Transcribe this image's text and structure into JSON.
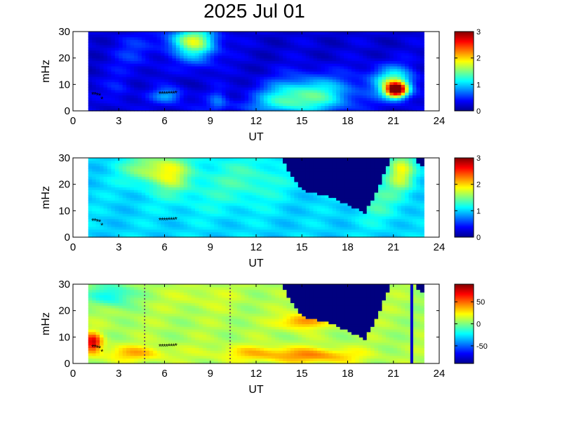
{
  "title": "2025 Jul 01",
  "colors": {
    "background_fill": "#00007f",
    "spectrum_low": "#00008f",
    "spectrum_high": "#7f0000",
    "marker": "#000000"
  },
  "chart_data": [
    {
      "type": "heatmap",
      "title": "",
      "xlabel": "UT",
      "ylabel": "mHz",
      "xlim": [
        0,
        24
      ],
      "ylim": [
        0,
        30
      ],
      "xticks": [
        "0",
        "3",
        "6",
        "9",
        "12",
        "15",
        "18",
        "21",
        "24"
      ],
      "yticks": [
        "0",
        "10",
        "20",
        "30"
      ],
      "data_extent": [
        1,
        23
      ],
      "colorbar": {
        "range": [
          0,
          3
        ],
        "ticks": [
          "0",
          "1",
          "2",
          "3"
        ]
      },
      "colormap": "jet",
      "hotspots": [
        {
          "x": 8.1,
          "y": 25,
          "value": 1.2,
          "sx": 0.9,
          "sy": 5
        },
        {
          "x": 7.5,
          "y": 27,
          "value": 0.9,
          "sx": 1.2,
          "sy": 3
        },
        {
          "x": 15.8,
          "y": 6,
          "value": 1.3,
          "sx": 1.8,
          "sy": 5
        },
        {
          "x": 13.5,
          "y": 4,
          "value": 0.8,
          "sx": 1.2,
          "sy": 4
        },
        {
          "x": 21.2,
          "y": 8,
          "value": 2.7,
          "sx": 0.5,
          "sy": 2
        },
        {
          "x": 21.0,
          "y": 11,
          "value": 1.4,
          "sx": 0.9,
          "sy": 4
        },
        {
          "x": 6.2,
          "y": 6,
          "value": 0.9,
          "sx": 0.7,
          "sy": 2
        },
        {
          "x": 4.0,
          "y": 22,
          "value": 0.5,
          "sx": 1.0,
          "sy": 5
        },
        {
          "x": 19.5,
          "y": 12,
          "value": 0.35,
          "sx": 1.0,
          "sy": 4
        },
        {
          "x": 11.0,
          "y": 2,
          "value": 0.4,
          "sx": 3.0,
          "sy": 2
        },
        {
          "x": 3.0,
          "y": 8,
          "value": 0.45,
          "sx": 0.6,
          "sy": 4
        },
        {
          "x": 9.5,
          "y": 4,
          "value": 0.6,
          "sx": 0.4,
          "sy": 3
        }
      ],
      "baseline": 0.25,
      "masked_region": []
    },
    {
      "type": "heatmap",
      "title": "",
      "xlabel": "UT",
      "ylabel": "mHz",
      "xlim": [
        0,
        24
      ],
      "ylim": [
        0,
        30
      ],
      "xticks": [
        "0",
        "3",
        "6",
        "9",
        "12",
        "15",
        "18",
        "21",
        "24"
      ],
      "yticks": [
        "0",
        "10",
        "20",
        "30"
      ],
      "data_extent": [
        1,
        23
      ],
      "colorbar": {
        "range": [
          0,
          3
        ],
        "ticks": [
          "0",
          "1",
          "2",
          "3"
        ]
      },
      "colormap": "jet",
      "hotspots": [
        {
          "x": 5.0,
          "y": 26,
          "value": 1.6,
          "sx": 1.2,
          "sy": 4
        },
        {
          "x": 6.5,
          "y": 24,
          "value": 1.5,
          "sx": 0.8,
          "sy": 5
        },
        {
          "x": 21.5,
          "y": 25,
          "value": 1.8,
          "sx": 0.6,
          "sy": 5
        },
        {
          "x": 9.0,
          "y": 20,
          "value": 1.2,
          "sx": 2.5,
          "sy": 8
        },
        {
          "x": 12.0,
          "y": 22,
          "value": 1.2,
          "sx": 1.5,
          "sy": 6
        },
        {
          "x": 20.0,
          "y": 14,
          "value": 1.3,
          "sx": 1.0,
          "sy": 6
        }
      ],
      "baseline": 1.0,
      "masked_region": [
        [
          13.6,
          30
        ],
        [
          15.0,
          18
        ],
        [
          17.0,
          15
        ],
        [
          18.2,
          12
        ],
        [
          19.1,
          9
        ],
        [
          20.0,
          18
        ],
        [
          20.8,
          30
        ]
      ],
      "masked_right": [
        [
          22.6,
          30
        ],
        [
          22.6,
          28
        ],
        [
          23,
          26
        ],
        [
          23,
          30
        ]
      ]
    },
    {
      "type": "heatmap",
      "title": "",
      "xlabel": "UT",
      "ylabel": "mHz",
      "xlim": [
        0,
        24
      ],
      "ylim": [
        0,
        30
      ],
      "xticks": [
        "0",
        "3",
        "6",
        "9",
        "12",
        "15",
        "18",
        "21",
        "24"
      ],
      "yticks": [
        "0",
        "10",
        "20",
        "30"
      ],
      "data_extent": [
        1,
        23
      ],
      "colorbar": {
        "range": [
          -90,
          90
        ],
        "ticks": [
          "50",
          "0",
          "-50"
        ],
        "tick_values": [
          50,
          0,
          -50
        ]
      },
      "colormap": "jet",
      "hotspots": [
        {
          "x": 1.3,
          "y": 8,
          "value": 75,
          "sx": 0.4,
          "sy": 2.5
        },
        {
          "x": 15.0,
          "y": 16,
          "value": 45,
          "sx": 1.0,
          "sy": 2
        },
        {
          "x": 16.0,
          "y": 3,
          "value": 40,
          "sx": 2.0,
          "sy": 2
        },
        {
          "x": 12.0,
          "y": 4,
          "value": 30,
          "sx": 2.0,
          "sy": 2
        },
        {
          "x": 4.0,
          "y": 4,
          "value": 35,
          "sx": 1.5,
          "sy": 2
        },
        {
          "x": 2.5,
          "y": 26,
          "value": -25,
          "sx": 1.0,
          "sy": 3
        },
        {
          "x": 8.5,
          "y": 25,
          "value": 15,
          "sx": 1.5,
          "sy": 3
        }
      ],
      "baseline": 8,
      "masked_region": [
        [
          13.6,
          30
        ],
        [
          15.0,
          18
        ],
        [
          17.0,
          15
        ],
        [
          18.2,
          12
        ],
        [
          19.1,
          9
        ],
        [
          20.0,
          18
        ],
        [
          20.8,
          30
        ]
      ],
      "masked_right": [
        [
          22.6,
          30
        ],
        [
          22.6,
          28
        ],
        [
          23,
          26
        ],
        [
          23,
          30
        ]
      ],
      "vertical_line": 22.2,
      "dotted_lines": [
        4.7,
        10.3
      ]
    }
  ],
  "markers": [
    {
      "x": 1.3,
      "y": 6.2
    },
    {
      "x": 1.45,
      "y": 6.2
    },
    {
      "x": 1.6,
      "y": 6.0
    },
    {
      "x": 1.75,
      "y": 5.8
    },
    {
      "x": 1.9,
      "y": 4.5
    },
    {
      "x": 5.7,
      "y": 6.5
    },
    {
      "x": 5.85,
      "y": 6.5
    },
    {
      "x": 6.0,
      "y": 6.5
    },
    {
      "x": 6.15,
      "y": 6.5
    },
    {
      "x": 6.3,
      "y": 6.6
    },
    {
      "x": 6.45,
      "y": 6.6
    },
    {
      "x": 6.6,
      "y": 6.7
    },
    {
      "x": 6.75,
      "y": 6.8
    }
  ]
}
